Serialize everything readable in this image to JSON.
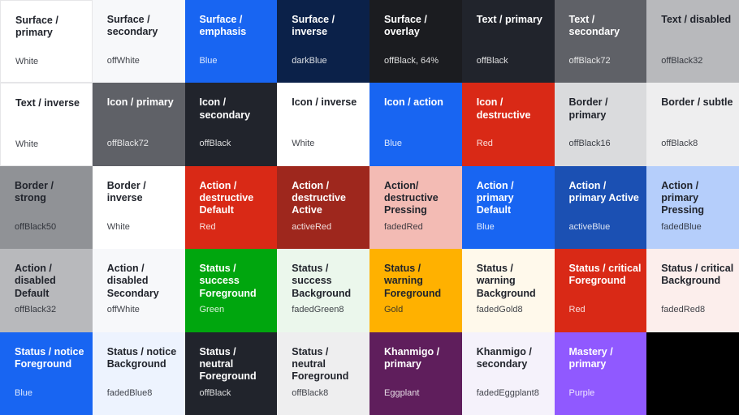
{
  "swatches": [
    {
      "title": "Surface / primary",
      "value": "White",
      "bg": "#ffffff",
      "fg": "#21242c",
      "border": true
    },
    {
      "title": "Surface / secondary",
      "value": "offWhite",
      "bg": "#f7f8fa",
      "fg": "#21242c"
    },
    {
      "title": "Surface / emphasis",
      "value": "Blue",
      "bg": "#1865f2",
      "fg": "#ffffff"
    },
    {
      "title": "Surface / inverse",
      "value": "darkBlue",
      "bg": "#0b2149",
      "fg": "#ffffff"
    },
    {
      "title": "Surface / overlay",
      "value": "offBlack, 64%",
      "bg": "#1b1c20",
      "fg": "#ffffff"
    },
    {
      "title": "Text / primary",
      "value": "offBlack",
      "bg": "#21242c",
      "fg": "#ffffff"
    },
    {
      "title": "Text / secondary",
      "value": "offBlack72",
      "bg": "#5f6167",
      "fg": "#ffffff"
    },
    {
      "title": "Text / disabled",
      "value": "offBlack32",
      "bg": "#b8b9bc",
      "fg": "#21242c"
    },
    {
      "title": "Text / inverse",
      "value": "White",
      "bg": "#ffffff",
      "fg": "#21242c",
      "border": true
    },
    {
      "title": "Icon / primary",
      "value": "offBlack72",
      "bg": "#5f6167",
      "fg": "#ffffff"
    },
    {
      "title": "Icon / secondary",
      "value": "offBlack",
      "bg": "#21242c",
      "fg": "#ffffff"
    },
    {
      "title": "Icon / inverse",
      "value": "White",
      "bg": "#ffffff",
      "fg": "#21242c"
    },
    {
      "title": "Icon / action",
      "value": "Blue",
      "bg": "#1865f2",
      "fg": "#ffffff"
    },
    {
      "title": "Icon / destructive",
      "value": "Red",
      "bg": "#d92916",
      "fg": "#ffffff"
    },
    {
      "title": "Border / primary",
      "value": "offBlack16",
      "bg": "#dadbdd",
      "fg": "#21242c"
    },
    {
      "title": "Border / subtle",
      "value": "offBlack8",
      "bg": "#eeeeef",
      "fg": "#21242c"
    },
    {
      "title": "Border / strong",
      "value": "offBlack50",
      "bg": "#909296",
      "fg": "#21242c"
    },
    {
      "title": "Border / inverse",
      "value": "White",
      "bg": "#ffffff",
      "fg": "#21242c"
    },
    {
      "title": "Action / destructive Default",
      "value": "Red",
      "bg": "#d92916",
      "fg": "#ffffff"
    },
    {
      "title": "Action / destructive Active",
      "value": "activeRed",
      "bg": "#9e271d",
      "fg": "#ffffff"
    },
    {
      "title": "Action/ destructive Pressing",
      "value": "fadedRed",
      "bg": "#f3bbb4",
      "fg": "#21242c"
    },
    {
      "title": "Action / primary Default",
      "value": "Blue",
      "bg": "#1865f2",
      "fg": "#ffffff"
    },
    {
      "title": "Action / primary Active",
      "value": "activeBlue",
      "bg": "#1b50b3",
      "fg": "#ffffff"
    },
    {
      "title": "Action / primary Pressing",
      "value": "fadedBlue",
      "bg": "#b5cefb",
      "fg": "#21242c"
    },
    {
      "title": "Action / disabled Default",
      "value": "offBlack32",
      "bg": "#b8b9bc",
      "fg": "#21242c"
    },
    {
      "title": "Action / disabled Secondary",
      "value": "offWhite",
      "bg": "#f7f8fa",
      "fg": "#21242c"
    },
    {
      "title": "Status / success Foreground",
      "value": "Green",
      "bg": "#00a60e",
      "fg": "#ffffff"
    },
    {
      "title": "Status / success Background",
      "value": "fadedGreen8",
      "bg": "#ebf7ec",
      "fg": "#21242c"
    },
    {
      "title": "Status / warning Foreground",
      "value": "Gold",
      "bg": "#ffb100",
      "fg": "#21242c"
    },
    {
      "title": "Status / warning Background",
      "value": "fadedGold8",
      "bg": "#fff9eb",
      "fg": "#21242c"
    },
    {
      "title": "Status / critical Foreground",
      "value": "Red",
      "bg": "#d92916",
      "fg": "#ffffff"
    },
    {
      "title": "Status / critical Background",
      "value": "fadedRed8",
      "bg": "#fceeec",
      "fg": "#21242c"
    },
    {
      "title": "Status / notice Foreground",
      "value": "Blue",
      "bg": "#1865f2",
      "fg": "#ffffff"
    },
    {
      "title": "Status / notice Background",
      "value": "fadedBlue8",
      "bg": "#edf3fe",
      "fg": "#21242c"
    },
    {
      "title": "Status / neutral Foreground",
      "value": "offBlack",
      "bg": "#21242c",
      "fg": "#ffffff"
    },
    {
      "title": "Status / neutral Foreground",
      "value": "offBlack8",
      "bg": "#eeeeef",
      "fg": "#21242c"
    },
    {
      "title": "Khanmigo / primary",
      "value": "Eggplant",
      "bg": "#5f1e5c",
      "fg": "#ffffff"
    },
    {
      "title": "Khanmigo / secondary",
      "value": "fadedEggplant8",
      "bg": "#f5f2fb",
      "fg": "#21242c"
    },
    {
      "title": "Mastery / primary",
      "value": "Purple",
      "bg": "#9059ff",
      "fg": "#ffffff"
    },
    {
      "title": "",
      "value": "",
      "bg": "#000000",
      "fg": "#ffffff"
    }
  ]
}
